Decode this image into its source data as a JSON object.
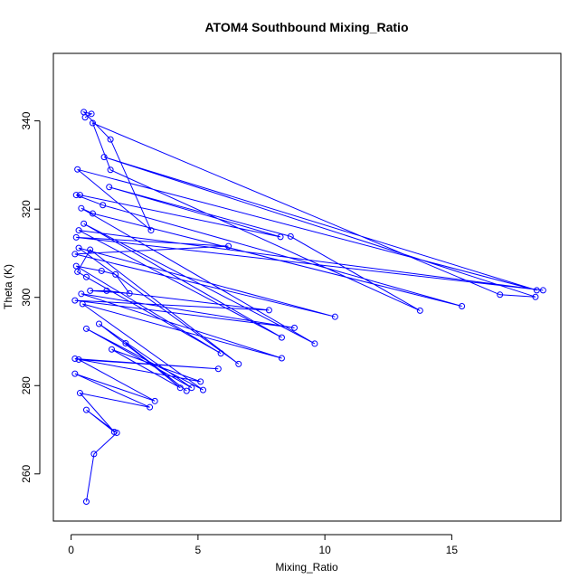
{
  "chart_data": {
    "type": "line",
    "title": "ATOM4 Southbound Mixing_Ratio",
    "xlabel": "Mixing_Ratio",
    "ylabel": "Theta (K)",
    "xlim": [
      -0.7,
      19.3
    ],
    "ylim": [
      249.3,
      355.3
    ],
    "xticks": [
      0,
      5,
      10,
      15
    ],
    "yticks": [
      260,
      280,
      300,
      320,
      340
    ],
    "grid": false,
    "series_color": "#0000ff",
    "markers": "open-circle",
    "series": [
      {
        "points": [
          [
            0.55,
            340.8
          ],
          [
            0.8,
            341.6
          ],
          [
            0.5,
            342.0
          ],
          [
            1.55,
            335.8
          ],
          [
            3.15,
            315.2
          ],
          [
            0.25,
            329.0
          ],
          [
            18.35,
            301.6
          ],
          [
            1.3,
            331.8
          ],
          [
            18.3,
            300.1
          ],
          [
            16.9,
            300.6
          ],
          [
            0.85,
            339.5
          ],
          [
            1.55,
            328.9
          ],
          [
            13.75,
            297.0
          ],
          [
            8.65,
            313.8
          ],
          [
            1.5,
            325.0
          ],
          [
            8.25,
            313.7
          ],
          [
            0.35,
            323.2
          ],
          [
            0.2,
            323.2
          ],
          [
            1.25,
            320.9
          ],
          [
            15.4,
            298.0
          ],
          [
            0.85,
            319.0
          ],
          [
            0.4,
            320.2
          ],
          [
            9.6,
            289.5
          ],
          [
            0.5,
            316.7
          ],
          [
            8.3,
            290.9
          ],
          [
            0.3,
            315.2
          ],
          [
            18.6,
            301.6
          ],
          [
            0.2,
            313.6
          ],
          [
            6.2,
            311.6
          ],
          [
            0.15,
            309.8
          ],
          [
            10.4,
            295.6
          ],
          [
            0.3,
            311.2
          ],
          [
            6.6,
            284.9
          ],
          [
            0.75,
            310.8
          ],
          [
            0.25,
            305.8
          ],
          [
            0.6,
            304.6
          ],
          [
            5.9,
            287.3
          ],
          [
            0.2,
            307.1
          ],
          [
            1.2,
            306.0
          ],
          [
            1.75,
            305.2
          ],
          [
            2.3,
            300.9
          ],
          [
            0.75,
            301.5
          ],
          [
            1.4,
            301.5
          ],
          [
            7.8,
            297.1
          ],
          [
            0.15,
            299.3
          ],
          [
            8.8,
            293.1
          ],
          [
            0.4,
            300.8
          ],
          [
            8.3,
            286.2
          ],
          [
            0.45,
            298.5
          ],
          [
            5.2,
            279.0
          ],
          [
            0.6,
            292.9
          ],
          [
            4.75,
            279.5
          ],
          [
            1.1,
            294.0
          ],
          [
            4.55,
            278.8
          ],
          [
            2.15,
            289.6
          ],
          [
            4.3,
            279.5
          ],
          [
            1.6,
            288.2
          ],
          [
            5.1,
            280.9
          ],
          [
            0.15,
            286.1
          ],
          [
            5.8,
            283.8
          ],
          [
            0.3,
            285.9
          ],
          [
            3.3,
            276.5
          ],
          [
            0.15,
            282.7
          ],
          [
            3.1,
            275.1
          ],
          [
            0.35,
            278.3
          ],
          [
            1.7,
            269.5
          ],
          [
            0.6,
            274.5
          ],
          [
            1.8,
            269.3
          ],
          [
            0.9,
            264.5
          ],
          [
            0.6,
            253.7
          ]
        ]
      }
    ]
  }
}
